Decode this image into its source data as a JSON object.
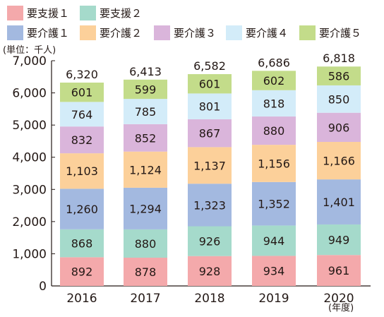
{
  "chart_data": {
    "type": "bar",
    "stacked": true,
    "categories": [
      "2016",
      "2017",
      "2018",
      "2019",
      "2020"
    ],
    "series": [
      {
        "name": "要支援１",
        "color": "#f4a9ab",
        "values": [
          892,
          878,
          928,
          934,
          961
        ]
      },
      {
        "name": "要支援２",
        "color": "#a5dacb",
        "values": [
          868,
          880,
          926,
          944,
          949
        ]
      },
      {
        "name": "要介護１",
        "color": "#a3b9e0",
        "values": [
          1260,
          1294,
          1323,
          1352,
          1401
        ]
      },
      {
        "name": "要介護２",
        "color": "#fcd09a",
        "values": [
          1103,
          1124,
          1137,
          1156,
          1166
        ]
      },
      {
        "name": "要介護３",
        "color": "#dab5db",
        "values": [
          832,
          852,
          867,
          880,
          906
        ]
      },
      {
        "name": "要介護４",
        "color": "#d3ecf9",
        "values": [
          764,
          785,
          801,
          818,
          850
        ]
      },
      {
        "name": "要介護５",
        "color": "#c3dc8a",
        "values": [
          601,
          599,
          601,
          602,
          586
        ]
      }
    ],
    "totals": [
      6320,
      6413,
      6582,
      6686,
      6818
    ],
    "ylim": [
      0,
      7000
    ],
    "yticks": [
      0,
      1000,
      2000,
      3000,
      4000,
      5000,
      6000,
      7000
    ],
    "ylabel": "(単位：千人)",
    "xlabel": "(年度)",
    "grid": false,
    "legend": "top"
  }
}
